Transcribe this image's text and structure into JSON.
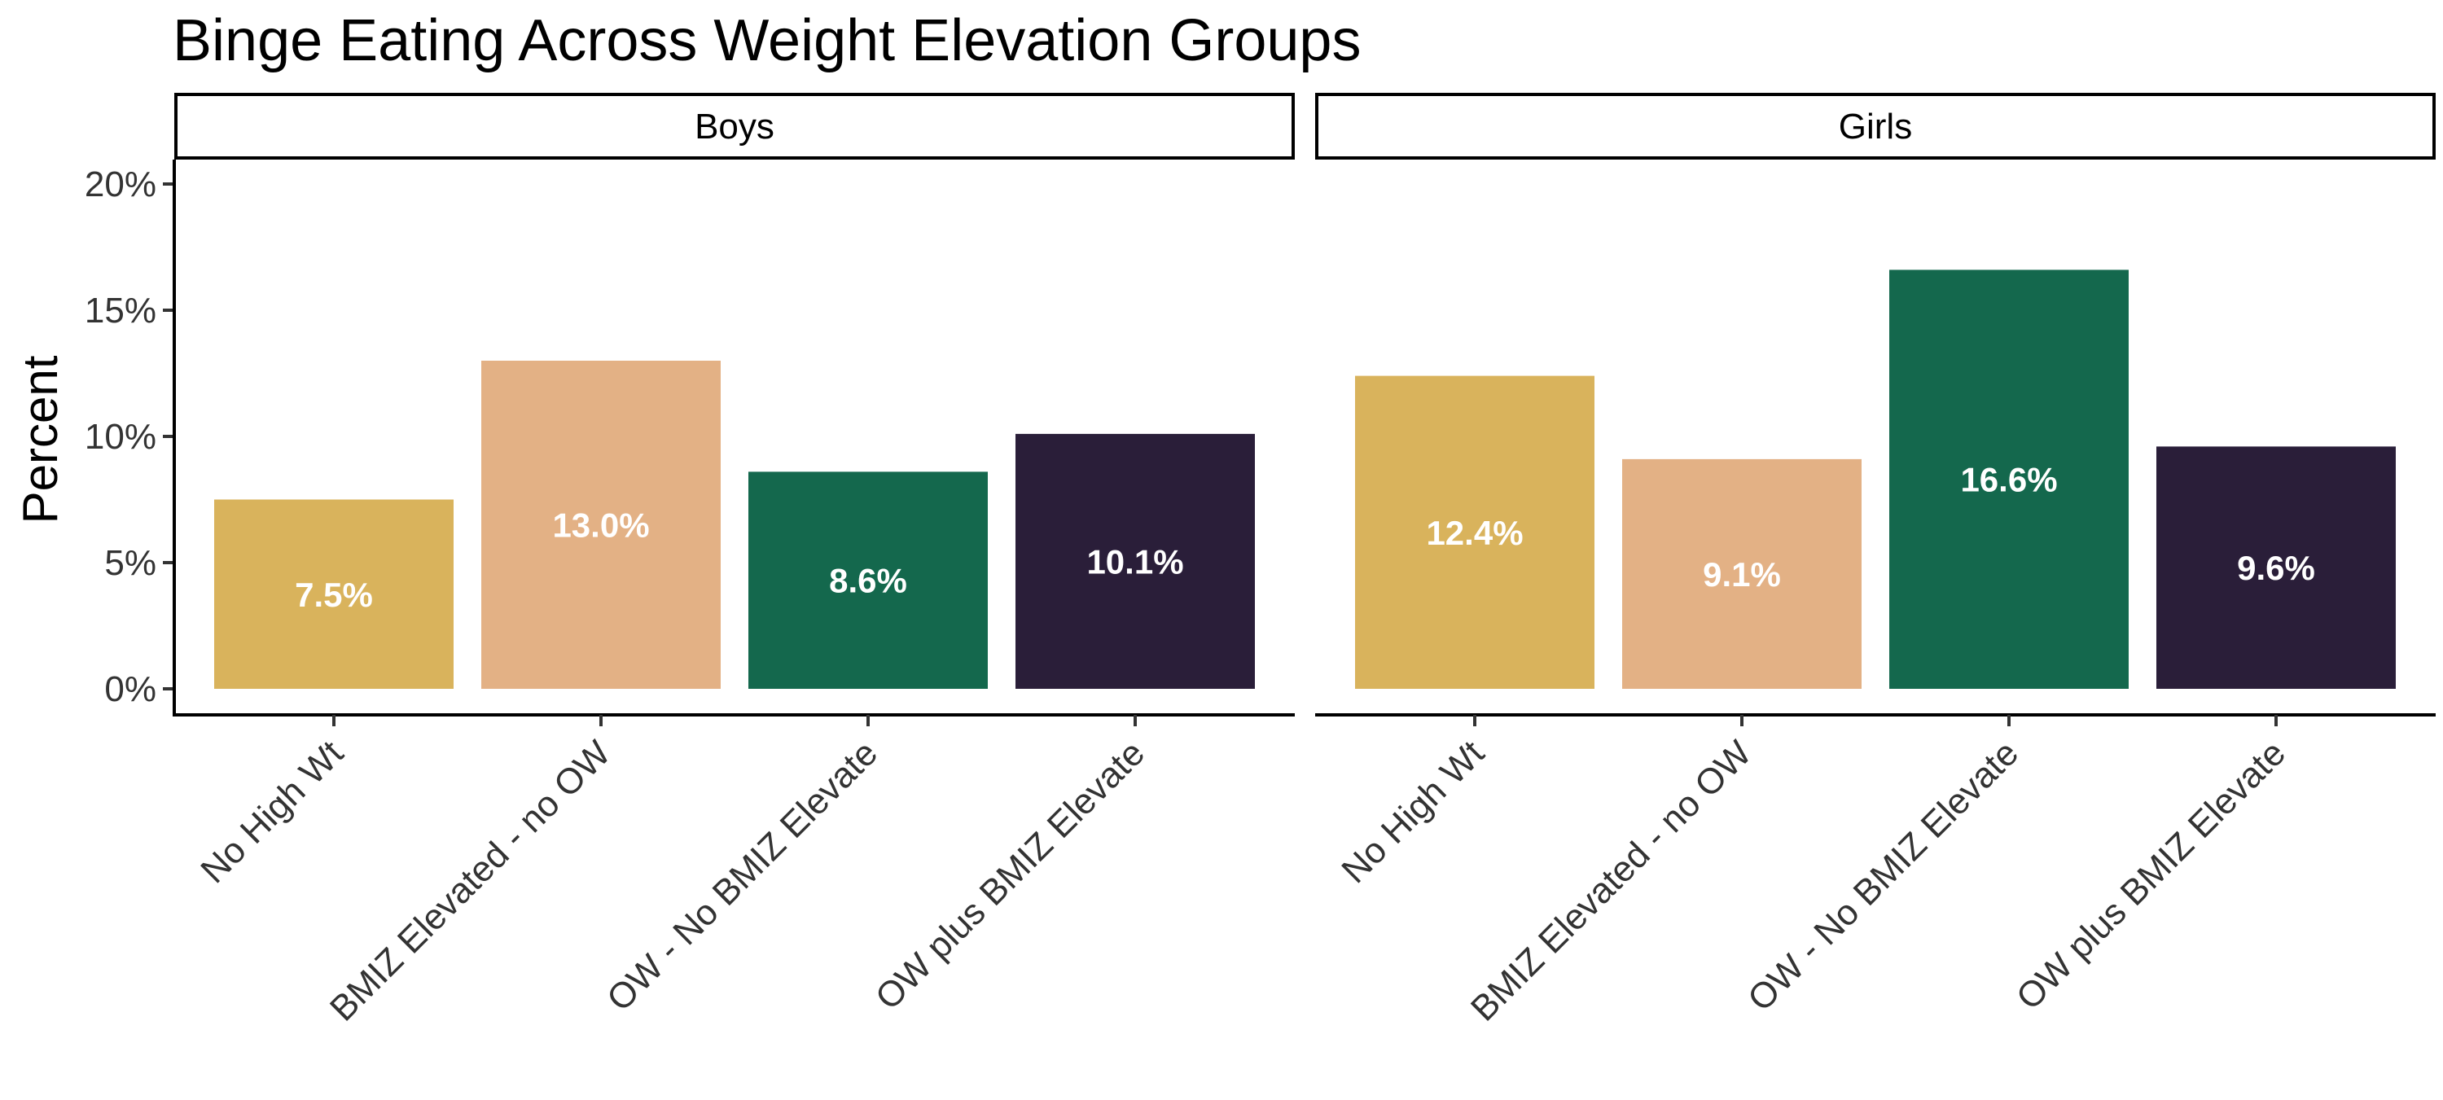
{
  "chart_data": {
    "type": "bar",
    "title": "Binge Eating Across Weight Elevation Groups",
    "xlabel": "",
    "ylabel": "Percent",
    "ylim": [
      0,
      20
    ],
    "yticks": [
      "0%",
      "5%",
      "10%",
      "15%",
      "20%"
    ],
    "grid": false,
    "categories": [
      "No High Wt",
      "BMIZ Elevated - no OW",
      "OW - No BMIZ Elevate",
      "OW plus BMIZ Elevate"
    ],
    "colors": [
      "#D9B35C",
      "#E3B185",
      "#14684D",
      "#2A1E39"
    ],
    "panels": [
      {
        "name": "Boys",
        "values": [
          7.5,
          13.0,
          8.6,
          10.1
        ],
        "labels": [
          "7.5%",
          "13.0%",
          "8.6%",
          "10.1%"
        ]
      },
      {
        "name": "Girls",
        "values": [
          12.4,
          9.1,
          16.6,
          9.6
        ],
        "labels": [
          "12.4%",
          "9.1%",
          "16.6%",
          "9.6%"
        ]
      }
    ]
  }
}
